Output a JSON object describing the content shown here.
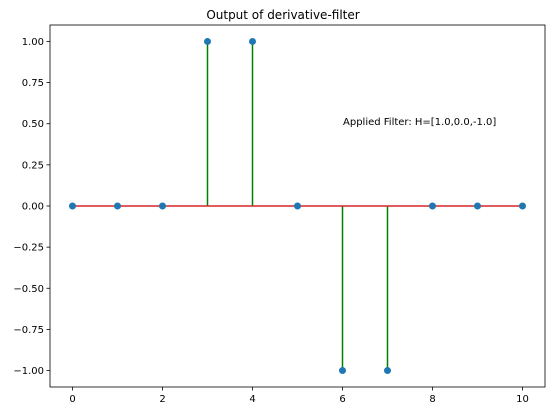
{
  "chart_data": {
    "type": "stem",
    "title": "Output of derivative-filter",
    "xlabel": "",
    "ylabel": "",
    "x": [
      0,
      1,
      2,
      3,
      4,
      5,
      6,
      7,
      8,
      9,
      10
    ],
    "y": [
      0,
      0,
      0,
      1,
      1,
      0,
      -1,
      -1,
      0,
      0,
      0
    ],
    "xlim": [
      -0.5,
      10.5
    ],
    "ylim": [
      -1.1,
      1.1
    ],
    "xticks": [
      0,
      2,
      4,
      6,
      8,
      10
    ],
    "xtick_labels": [
      "0",
      "2",
      "4",
      "6",
      "8",
      "10"
    ],
    "yticks": [
      1.0,
      0.75,
      0.5,
      0.25,
      0.0,
      -0.25,
      -0.5,
      -0.75,
      -1.0
    ],
    "ytick_labels": [
      "1.00",
      "0.75",
      "0.50",
      "0.25",
      "0.00",
      "−0.25",
      "−0.50",
      "−0.75",
      "−1.00"
    ],
    "grid": false,
    "annotation": {
      "text": "Applied Filter: H=[1.0,0.0,-1.0]",
      "x": 6.0,
      "y": 0.5
    },
    "colors": {
      "stem": "#008000",
      "marker": "#1f77b4",
      "baseline": "#d62728"
    }
  }
}
